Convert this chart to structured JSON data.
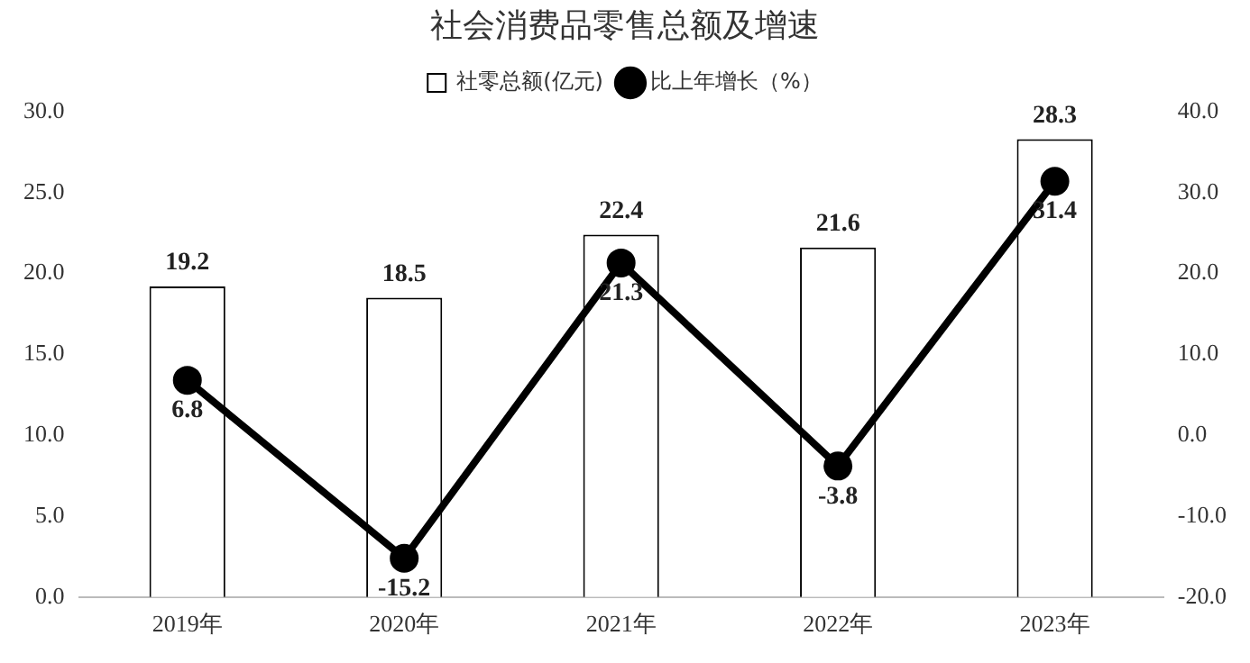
{
  "chart_data": {
    "type": "bar",
    "title": "社会消费品零售总额及增速",
    "categories": [
      "2019年",
      "2020年",
      "2021年",
      "2022年",
      "2023年"
    ],
    "series": [
      {
        "name": "社零总额(亿元)",
        "color": "#000000",
        "values": [
          19.2,
          18.5,
          22.4,
          21.6,
          28.3
        ]
      },
      {
        "name": "比上年增长（%）",
        "type": "line",
        "axis": "y2",
        "color": "#000000",
        "values": [
          6.8,
          -15.2,
          21.3,
          -3.8,
          31.4
        ]
      }
    ],
    "ylim": [
      0,
      30
    ],
    "yticks": [
      {
        "value": 0,
        "label": "0.0"
      },
      {
        "value": 5,
        "label": "5.0"
      },
      {
        "value": 10,
        "label": "10.0"
      },
      {
        "value": 15,
        "label": "15.0"
      },
      {
        "value": 20,
        "label": "20.0"
      },
      {
        "value": 25,
        "label": "25.0"
      },
      {
        "value": 30,
        "label": "30.0"
      }
    ],
    "y2lim": [
      -20,
      40
    ],
    "y2ticks": [
      {
        "value": -20,
        "label": "-20.0"
      },
      {
        "value": -10,
        "label": "-10.0"
      },
      {
        "value": 0,
        "label": "0.0"
      },
      {
        "value": 10,
        "label": "10.0"
      },
      {
        "value": 20,
        "label": "20.0"
      },
      {
        "value": 30,
        "label": "30.0"
      },
      {
        "value": 40,
        "label": "40.0"
      }
    ],
    "grid": false,
    "legend": "top",
    "marker": "circle",
    "line_style": "solid",
    "data_labels": true
  }
}
